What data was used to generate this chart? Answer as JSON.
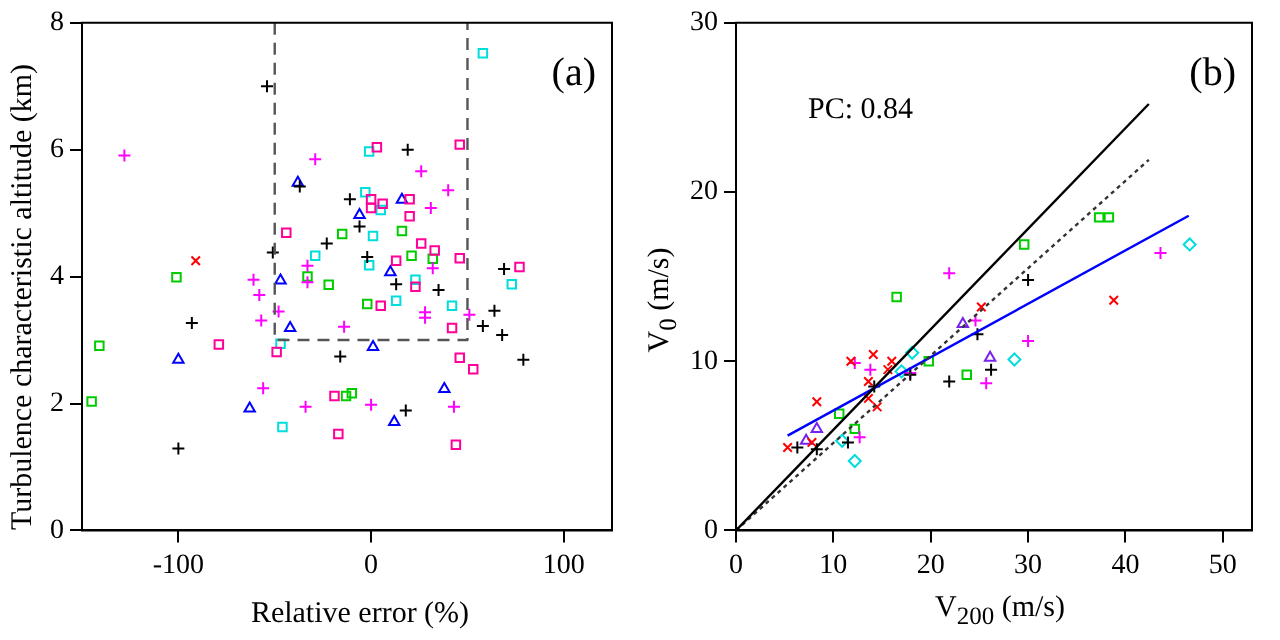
{
  "chart_data": [
    {
      "type": "scatter",
      "title": "(a)",
      "xlabel": "Relative error (%)",
      "ylabel": "Turbulence characteristic altitude (km)",
      "xlim": [
        -150,
        125
      ],
      "ylim": [
        0,
        8
      ],
      "xticks": [
        -100,
        0,
        100
      ],
      "yticks": [
        0,
        2,
        4,
        6,
        8
      ],
      "series": [
        {
          "type": "line",
          "color": "#555555",
          "line_style": "dashed",
          "x": [
            -50,
            -50,
            50,
            50
          ],
          "values": [
            8,
            3,
            3,
            8
          ]
        },
        {
          "color": "#000000",
          "marker": "cross",
          "x": [
            -54,
            19,
            -11,
            -37,
            -6,
            -23,
            -51,
            -2,
            69,
            13,
            35,
            -93,
            64,
            58,
            68,
            79,
            -16,
            18,
            -100
          ],
          "values": [
            7.0,
            6.0,
            5.22,
            5.42,
            4.79,
            4.52,
            4.38,
            4.31,
            4.12,
            3.88,
            3.79,
            3.27,
            3.46,
            3.22,
            3.08,
            2.69,
            2.74,
            1.89,
            1.29
          ]
        },
        {
          "color": "#ff0000",
          "marker": "x",
          "x": [
            -91
          ],
          "values": [
            4.25
          ]
        },
        {
          "color": "#ff00ff",
          "marker": "cross",
          "x": [
            -128,
            -29,
            26,
            40,
            31,
            -33,
            32,
            -61,
            -33,
            -58,
            -57,
            -48,
            28,
            28,
            51,
            -14,
            -56,
            -34,
            0,
            43
          ],
          "values": [
            5.91,
            5.85,
            5.66,
            5.36,
            5.08,
            4.17,
            4.13,
            3.95,
            3.91,
            3.71,
            3.31,
            3.45,
            3.44,
            3.35,
            3.4,
            3.21,
            2.24,
            1.95,
            1.98,
            1.95
          ]
        },
        {
          "color": "#ff0099",
          "marker": "square",
          "x": [
            3,
            46,
            0,
            6,
            20,
            0,
            20,
            -44,
            26,
            33,
            13,
            46,
            77,
            23,
            5,
            42,
            -79,
            -49,
            46,
            53,
            -19,
            -17,
            44
          ],
          "values": [
            6.04,
            6.08,
            5.22,
            5.15,
            5.22,
            5.08,
            4.95,
            4.69,
            4.52,
            4.41,
            4.25,
            4.29,
            4.15,
            3.84,
            3.54,
            3.19,
            2.93,
            2.81,
            2.72,
            2.54,
            2.12,
            1.52,
            1.35
          ]
        },
        {
          "color": "#00cc00",
          "marker": "square",
          "x": [
            -101,
            -15,
            16,
            21,
            32,
            -33,
            -22,
            -2,
            -141,
            -145,
            -10,
            -13
          ],
          "values": [
            3.99,
            4.67,
            4.72,
            4.33,
            4.28,
            4.0,
            3.87,
            3.57,
            2.91,
            2.03,
            2.16,
            2.12
          ]
        },
        {
          "color": "#00dddd",
          "marker": "square",
          "x": [
            58,
            -1,
            -3,
            5,
            1,
            -29,
            -1,
            23,
            73,
            13,
            42,
            -47,
            -46
          ],
          "values": [
            7.52,
            5.97,
            5.33,
            5.05,
            4.64,
            4.33,
            4.18,
            3.95,
            3.88,
            3.62,
            3.54,
            2.94,
            1.63
          ]
        },
        {
          "color": "#0000ff",
          "marker": "triangle",
          "x": [
            -38,
            -6,
            16,
            -47,
            10,
            -42,
            -100,
            1,
            38,
            -63,
            12
          ],
          "values": [
            5.48,
            4.97,
            5.21,
            3.94,
            4.07,
            3.19,
            2.69,
            2.89,
            2.23,
            1.92,
            1.71
          ]
        }
      ]
    },
    {
      "type": "scatter",
      "title": "(b)",
      "xlabel": "V$_{200}$ (m/s)",
      "ylabel": "V$_{0}$ (m/s)",
      "annotations": [
        "PC: 0.84"
      ],
      "xlim": [
        0,
        53
      ],
      "ylim": [
        0,
        30
      ],
      "xticks": [
        0,
        10,
        20,
        30,
        40,
        50
      ],
      "yticks": [
        0,
        10,
        20,
        30
      ],
      "series": [
        {
          "type": "line",
          "color": "#000000",
          "line_style": "solid",
          "x": [
            0,
            42.4
          ],
          "values": [
            0,
            25.2
          ]
        },
        {
          "type": "line",
          "color": "#333333",
          "line_style": "dotted",
          "x": [
            0,
            42.4
          ],
          "values": [
            0,
            21.9
          ]
        },
        {
          "type": "line",
          "color": "#0000ff",
          "line_style": "solid",
          "x": [
            5.3,
            46.5
          ],
          "values": [
            5.6,
            18.6
          ]
        },
        {
          "color": "#ff0000",
          "marker": "x",
          "x": [
            38.8,
            25.2,
            5.3,
            8.3,
            11.8,
            14.1,
            16.0,
            15.6,
            13.6,
            13.6,
            14.5,
            7.8
          ],
          "values": [
            13.6,
            13.2,
            4.9,
            7.6,
            10.0,
            10.4,
            10.0,
            9.5,
            8.8,
            7.8,
            7.3,
            5.2
          ]
        },
        {
          "color": "#000000",
          "marker": "cross",
          "x": [
            30.0,
            6.3,
            8.3,
            14.2,
            11.5,
            21.9,
            26.2,
            24.8,
            17.9
          ],
          "values": [
            14.8,
            4.9,
            4.8,
            8.5,
            5.2,
            8.8,
            9.5,
            11.6,
            9.2
          ]
        },
        {
          "color": "#ff00ff",
          "marker": "cross",
          "x": [
            21.9,
            43.6,
            12.2,
            13.8,
            12.7,
            24.6,
            30.0,
            25.7,
            17.9
          ],
          "values": [
            15.2,
            16.4,
            9.9,
            9.5,
            5.5,
            12.4,
            11.2,
            8.7,
            9.3
          ]
        },
        {
          "color": "#7722ee",
          "marker": "triangle",
          "x": [
            23.3,
            26.1,
            8.3,
            7.2
          ],
          "values": [
            12.2,
            10.2,
            6.0,
            5.3
          ]
        },
        {
          "color": "#00cc00",
          "marker": "square",
          "x": [
            16.5,
            29.6,
            37.3,
            38.3,
            10.6,
            12.2,
            19.8,
            23.7
          ],
          "values": [
            13.8,
            16.9,
            18.5,
            18.5,
            6.9,
            6.0,
            10.0,
            9.2
          ]
        },
        {
          "color": "#00dddd",
          "marker": "diamond",
          "x": [
            46.6,
            18.1,
            17.0,
            10.9,
            12.2,
            28.6
          ],
          "values": [
            16.9,
            10.5,
            9.4,
            5.3,
            4.1,
            10.1
          ]
        }
      ]
    }
  ]
}
